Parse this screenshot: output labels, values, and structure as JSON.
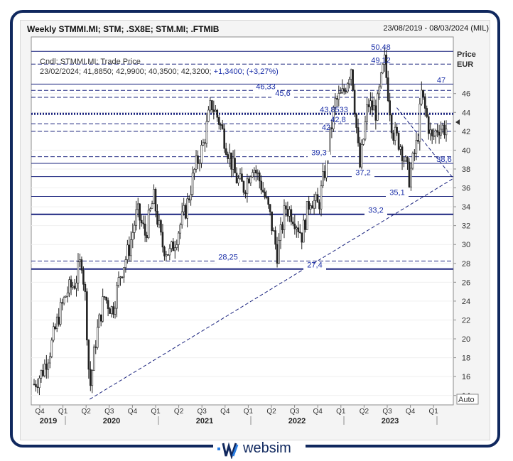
{
  "header": {
    "title": "Weekly STMMI.MI; STM; .SX8E; STM.MI; .FTMIB",
    "date_range": "23/08/2019 - 08/03/2024 (MIL)"
  },
  "info": {
    "line1": "Cndl; STMMI.MI; Trade Price",
    "line2_prefix": "23/02/2024; 41,8850; 42,9900; 40,3500; 42,3200;",
    "line2_change": "+1,3400; (+3,27%)"
  },
  "axis": {
    "price_label": "Price",
    "currency_label": "EUR",
    "auto_button": "Auto"
  },
  "logo": {
    "text": "websim"
  },
  "chart_data": {
    "type": "candlestick",
    "ylim": [
      13,
      52
    ],
    "y_ticks": [
      14,
      16,
      18,
      20,
      22,
      24,
      26,
      28,
      30,
      32,
      34,
      36,
      38,
      40,
      42,
      44,
      46
    ],
    "quarter_ticks": [
      "Q4",
      "Q1",
      "Q2",
      "Q3",
      "Q4",
      "Q1",
      "Q2",
      "Q3",
      "Q4",
      "Q1",
      "Q2",
      "Q3",
      "Q4",
      "Q1",
      "Q2",
      "Q3",
      "Q4",
      "Q1"
    ],
    "year_labels": [
      "2019",
      "2020",
      "2021",
      "2022",
      "2023"
    ],
    "levels": [
      {
        "value": 50.48,
        "label": "50,48",
        "style": "solid"
      },
      {
        "value": 49.12,
        "label": "49,12",
        "style": "dash"
      },
      {
        "value": 47,
        "label": "47",
        "style": "solid"
      },
      {
        "value": 46.33,
        "label": "46,33",
        "style": "dash"
      },
      {
        "value": 45.6,
        "label": "45,6",
        "style": "dash"
      },
      {
        "value": 43.8533,
        "label": "43,8533",
        "style": "dot"
      },
      {
        "value": 42.8,
        "label": "42,8",
        "style": "dash"
      },
      {
        "value": 42,
        "label": "42",
        "style": "dash"
      },
      {
        "value": 39.3,
        "label": "39,3",
        "style": "dash"
      },
      {
        "value": 38.6,
        "label": "38,6",
        "style": "solid"
      },
      {
        "value": 37.2,
        "label": "37,2",
        "style": "solid"
      },
      {
        "value": 35.1,
        "label": "35,1",
        "style": "solid"
      },
      {
        "value": 33.2,
        "label": "33,2",
        "style": "thick"
      },
      {
        "value": 28.25,
        "label": "28,25",
        "style": "dash"
      },
      {
        "value": 27.4,
        "label": "27,4",
        "style": "thick"
      }
    ],
    "price_series": [
      {
        "t": 0.0,
        "v": 15.2
      },
      {
        "t": 0.02,
        "v": 16.5
      },
      {
        "t": 0.04,
        "v": 19.0
      },
      {
        "t": 0.06,
        "v": 22.5
      },
      {
        "t": 0.08,
        "v": 25.0
      },
      {
        "t": 0.1,
        "v": 26.0
      },
      {
        "t": 0.115,
        "v": 28.5
      },
      {
        "t": 0.125,
        "v": 24.0
      },
      {
        "t": 0.135,
        "v": 14.5
      },
      {
        "t": 0.15,
        "v": 20.0
      },
      {
        "t": 0.17,
        "v": 24.5
      },
      {
        "t": 0.19,
        "v": 23.0
      },
      {
        "t": 0.21,
        "v": 27.0
      },
      {
        "t": 0.23,
        "v": 29.5
      },
      {
        "t": 0.25,
        "v": 33.5
      },
      {
        "t": 0.27,
        "v": 31.0
      },
      {
        "t": 0.29,
        "v": 35.0
      },
      {
        "t": 0.31,
        "v": 30.0
      },
      {
        "t": 0.33,
        "v": 29.0
      },
      {
        "t": 0.35,
        "v": 31.5
      },
      {
        "t": 0.37,
        "v": 34.0
      },
      {
        "t": 0.39,
        "v": 38.0
      },
      {
        "t": 0.41,
        "v": 40.5
      },
      {
        "t": 0.43,
        "v": 45.0
      },
      {
        "t": 0.45,
        "v": 43.0
      },
      {
        "t": 0.47,
        "v": 40.0
      },
      {
        "t": 0.49,
        "v": 37.0
      },
      {
        "t": 0.51,
        "v": 36.0
      },
      {
        "t": 0.53,
        "v": 38.5
      },
      {
        "t": 0.55,
        "v": 36.5
      },
      {
        "t": 0.57,
        "v": 33.5
      },
      {
        "t": 0.59,
        "v": 29.0
      },
      {
        "t": 0.61,
        "v": 34.0
      },
      {
        "t": 0.63,
        "v": 33.0
      },
      {
        "t": 0.65,
        "v": 31.0
      },
      {
        "t": 0.67,
        "v": 35.0
      },
      {
        "t": 0.69,
        "v": 34.0
      },
      {
        "t": 0.71,
        "v": 39.0
      },
      {
        "t": 0.73,
        "v": 45.0
      },
      {
        "t": 0.75,
        "v": 46.0
      },
      {
        "t": 0.77,
        "v": 49.0
      },
      {
        "t": 0.79,
        "v": 38.0
      },
      {
        "t": 0.81,
        "v": 45.0
      },
      {
        "t": 0.83,
        "v": 44.0
      },
      {
        "t": 0.85,
        "v": 49.5
      },
      {
        "t": 0.87,
        "v": 42.0
      },
      {
        "t": 0.89,
        "v": 40.5
      },
      {
        "t": 0.91,
        "v": 37.0
      },
      {
        "t": 0.93,
        "v": 41.0
      },
      {
        "t": 0.94,
        "v": 46.0
      },
      {
        "t": 0.95,
        "v": 44.0
      },
      {
        "t": 0.965,
        "v": 41.0
      },
      {
        "t": 0.98,
        "v": 42.5
      },
      {
        "t": 1.0,
        "v": 42.3
      }
    ]
  }
}
